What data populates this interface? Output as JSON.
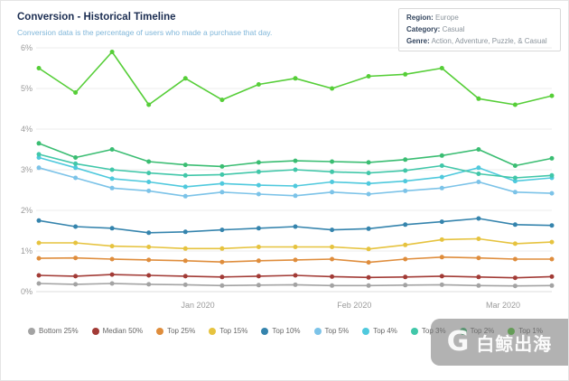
{
  "header": {
    "title": "Conversion - Historical Timeline",
    "subtitle": "Conversion data is the percentage of users who made a purchase that day."
  },
  "filters": {
    "region_label": "Region:",
    "region_value": "Europe",
    "category_label": "Category:",
    "category_value": "Casual",
    "genre_label": "Genre:",
    "genre_value": "Action, Adventure, Puzzle, & Casual"
  },
  "chart_data": {
    "type": "line",
    "title": "Conversion - Historical Timeline",
    "xlabel": "",
    "ylabel": "",
    "ylim": [
      0,
      6
    ],
    "grid": true,
    "legend_position": "bottom",
    "y_ticks": [
      "0%",
      "1%",
      "2%",
      "3%",
      "4%",
      "5%",
      "6%"
    ],
    "x_ticks": [
      {
        "label": "Jan 2020",
        "pos": 0.31
      },
      {
        "label": "Feb 2020",
        "pos": 0.615
      },
      {
        "label": "Mar 2020",
        "pos": 0.905
      }
    ],
    "series": [
      {
        "name": "Bottom 25%",
        "color": "#a3a3a3",
        "values": [
          0.2,
          0.18,
          0.2,
          0.18,
          0.17,
          0.15,
          0.16,
          0.17,
          0.15,
          0.15,
          0.16,
          0.17,
          0.15,
          0.14,
          0.15
        ]
      },
      {
        "name": "Median 50%",
        "color": "#a23b36",
        "values": [
          0.4,
          0.38,
          0.42,
          0.4,
          0.38,
          0.36,
          0.38,
          0.4,
          0.37,
          0.35,
          0.36,
          0.38,
          0.36,
          0.34,
          0.37
        ]
      },
      {
        "name": "Top 25%",
        "color": "#df8d3c",
        "values": [
          0.82,
          0.83,
          0.8,
          0.78,
          0.76,
          0.73,
          0.76,
          0.78,
          0.8,
          0.72,
          0.8,
          0.85,
          0.83,
          0.8,
          0.8
        ]
      },
      {
        "name": "Top 15%",
        "color": "#e6c33f",
        "values": [
          1.2,
          1.2,
          1.12,
          1.1,
          1.06,
          1.06,
          1.1,
          1.1,
          1.1,
          1.05,
          1.15,
          1.28,
          1.3,
          1.18,
          1.22
        ]
      },
      {
        "name": "Top 10%",
        "color": "#3584ad",
        "values": [
          1.75,
          1.6,
          1.56,
          1.45,
          1.47,
          1.52,
          1.56,
          1.6,
          1.52,
          1.55,
          1.65,
          1.72,
          1.8,
          1.65,
          1.63
        ]
      },
      {
        "name": "Top 5%",
        "color": "#7cc3e8",
        "values": [
          3.05,
          2.8,
          2.55,
          2.48,
          2.35,
          2.45,
          2.4,
          2.36,
          2.45,
          2.4,
          2.48,
          2.55,
          2.7,
          2.45,
          2.42
        ]
      },
      {
        "name": "Top 4%",
        "color": "#4fc9dd",
        "values": [
          3.3,
          3.05,
          2.78,
          2.7,
          2.58,
          2.66,
          2.62,
          2.6,
          2.7,
          2.66,
          2.72,
          2.82,
          3.05,
          2.72,
          2.8
        ]
      },
      {
        "name": "Top 3%",
        "color": "#41c7a9",
        "values": [
          3.38,
          3.15,
          3.0,
          2.92,
          2.86,
          2.88,
          2.95,
          3.0,
          2.95,
          2.92,
          2.98,
          3.1,
          2.9,
          2.8,
          2.86
        ]
      },
      {
        "name": "Top 2%",
        "color": "#3abd72",
        "values": [
          3.65,
          3.3,
          3.5,
          3.2,
          3.12,
          3.08,
          3.18,
          3.22,
          3.2,
          3.18,
          3.25,
          3.35,
          3.5,
          3.1,
          3.28
        ]
      },
      {
        "name": "Top 1%",
        "color": "#56ce38",
        "values": [
          5.5,
          4.9,
          5.9,
          4.6,
          5.25,
          4.72,
          5.1,
          5.25,
          5.0,
          5.3,
          5.35,
          5.5,
          4.75,
          4.6,
          4.82
        ]
      }
    ]
  },
  "watermark": {
    "logo": "G",
    "text": "白鲸出海"
  }
}
